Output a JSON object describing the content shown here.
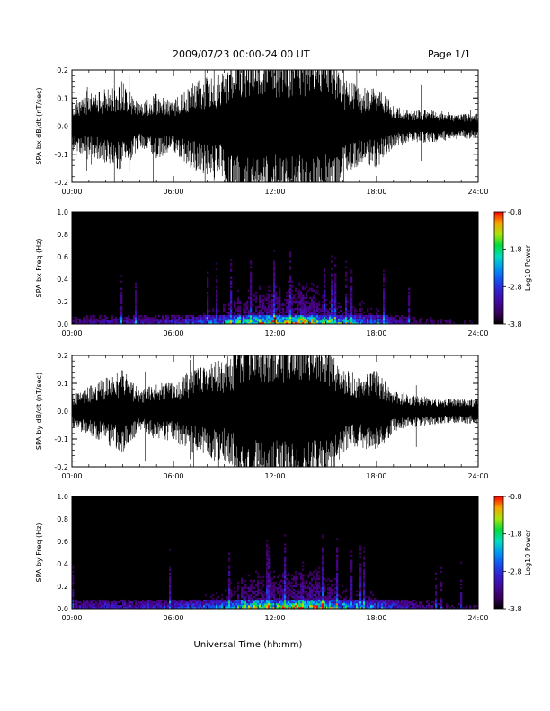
{
  "header": {
    "title": "2009/07/23  00:00-24:00 UT",
    "page": "Page 1/1"
  },
  "chart_data": [
    {
      "type": "line",
      "title": "",
      "xlabel": "",
      "ylabel": "SPA bx dB/dt (nT/sec)",
      "x_ticks": [
        "00:00",
        "06:00",
        "12:00",
        "18:00",
        "24:00"
      ],
      "y_ticks": [
        "0.2",
        "0.1",
        "0.0",
        "-0.1",
        "-0.2"
      ],
      "xlim": [
        0,
        24
      ],
      "ylim": [
        -0.2,
        0.2
      ],
      "series": [
        {
          "x": [
            0,
            1,
            2,
            3,
            4,
            5,
            6,
            7,
            8,
            9,
            9.5,
            10,
            10.5,
            11,
            12,
            13,
            14,
            15,
            15.5,
            16,
            17,
            18,
            19,
            20,
            21,
            22,
            23,
            24
          ],
          "y": [
            0.06,
            0.07,
            0.09,
            0.11,
            0.05,
            0.08,
            0.06,
            0.1,
            0.12,
            0.13,
            0.2,
            0.2,
            0.2,
            0.2,
            0.2,
            0.2,
            0.2,
            0.2,
            0.2,
            0.12,
            0.09,
            0.1,
            0.05,
            0.04,
            0.04,
            0.035,
            0.03,
            0.03
          ]
        }
      ]
    },
    {
      "type": "heatmap",
      "title": "",
      "xlabel": "",
      "ylabel": "SPA bx Freq (Hz)",
      "x_ticks": [
        "00:00",
        "06:00",
        "12:00",
        "18:00",
        "24:00"
      ],
      "y_ticks": [
        "1.0",
        "0.8",
        "0.6",
        "0.4",
        "0.2",
        "0.0"
      ],
      "xlim": [
        0,
        24
      ],
      "ylim": [
        0,
        1.0
      ],
      "colorbar": {
        "label": "Log10 Power",
        "ticks": [
          "-0.8",
          "-1.8",
          "-2.8",
          "-3.8"
        ],
        "range": [
          -3.8,
          -0.8
        ]
      },
      "profile_hours": [
        0,
        2,
        4,
        6,
        8,
        9,
        10,
        11,
        12,
        13,
        14,
        15,
        16,
        17,
        18,
        19,
        20,
        22,
        24
      ],
      "activity": [
        0.25,
        0.3,
        0.32,
        0.35,
        0.45,
        0.55,
        0.7,
        0.75,
        0.8,
        0.85,
        0.9,
        0.75,
        0.6,
        0.55,
        0.55,
        0.35,
        0.25,
        0.2,
        0.15
      ]
    },
    {
      "type": "line",
      "title": "",
      "xlabel": "",
      "ylabel": "SPA by dB/dt (nT/sec)",
      "x_ticks": [
        "00:00",
        "06:00",
        "12:00",
        "18:00",
        "24:00"
      ],
      "y_ticks": [
        "0.2",
        "0.1",
        "0.0",
        "-0.1",
        "-0.2"
      ],
      "xlim": [
        0,
        24
      ],
      "ylim": [
        -0.2,
        0.2
      ],
      "series": [
        {
          "x": [
            0,
            1,
            2,
            3,
            4,
            5,
            6,
            7,
            8,
            9,
            9.5,
            10,
            10.5,
            11,
            12,
            13,
            14,
            15,
            15.5,
            16,
            17,
            18,
            19,
            20,
            21,
            22,
            23,
            24
          ],
          "y": [
            0.04,
            0.06,
            0.08,
            0.1,
            0.05,
            0.07,
            0.07,
            0.1,
            0.12,
            0.12,
            0.15,
            0.18,
            0.2,
            0.2,
            0.2,
            0.2,
            0.2,
            0.2,
            0.14,
            0.1,
            0.09,
            0.1,
            0.05,
            0.04,
            0.035,
            0.03,
            0.03,
            0.03
          ]
        }
      ]
    },
    {
      "type": "heatmap",
      "title": "",
      "xlabel": "Universal Time (hh:mm)",
      "ylabel": "SPA by Freq (Hz)",
      "x_ticks": [
        "00:00",
        "06:00",
        "12:00",
        "18:00",
        "24:00"
      ],
      "y_ticks": [
        "1.0",
        "0.8",
        "0.6",
        "0.4",
        "0.2",
        "0.0"
      ],
      "xlim": [
        0,
        24
      ],
      "ylim": [
        0,
        1.0
      ],
      "colorbar": {
        "label": "Log10 Power",
        "ticks": [
          "-0.8",
          "-1.8",
          "-2.8",
          "-3.8"
        ],
        "range": [
          -3.8,
          -0.8
        ]
      },
      "profile_hours": [
        0,
        2,
        4,
        6,
        8,
        9,
        10,
        11,
        12,
        13,
        14,
        15,
        16,
        17,
        18,
        19,
        20,
        22,
        24
      ],
      "activity": [
        0.3,
        0.35,
        0.35,
        0.38,
        0.45,
        0.55,
        0.7,
        0.75,
        0.8,
        0.85,
        0.88,
        0.75,
        0.62,
        0.55,
        0.55,
        0.4,
        0.3,
        0.22,
        0.18
      ]
    }
  ],
  "colors": {
    "trace": "#000000",
    "background": "#ffffff"
  }
}
